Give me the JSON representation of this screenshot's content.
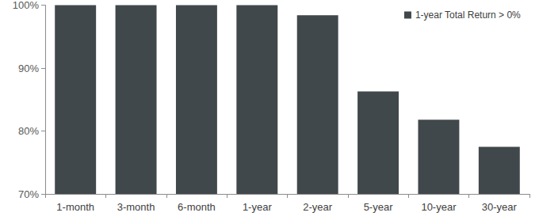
{
  "chart_data": {
    "type": "bar",
    "categories": [
      "1-month",
      "3-month",
      "6-month",
      "1-year",
      "2-year",
      "5-year",
      "10-year",
      "30-year"
    ],
    "series": [
      {
        "name": "1-year Total Return > 0%",
        "color": "#41484b",
        "values": [
          100,
          100,
          100,
          100,
          98.4,
          86.3,
          81.8,
          77.5
        ]
      }
    ],
    "ylim": [
      70,
      100
    ],
    "yticks": [
      {
        "value": 70,
        "label": "70%"
      },
      {
        "value": 80,
        "label": "80%"
      },
      {
        "value": 90,
        "label": "90%"
      },
      {
        "value": 100,
        "label": "100%"
      }
    ],
    "grid": false,
    "legend": "upper right"
  }
}
